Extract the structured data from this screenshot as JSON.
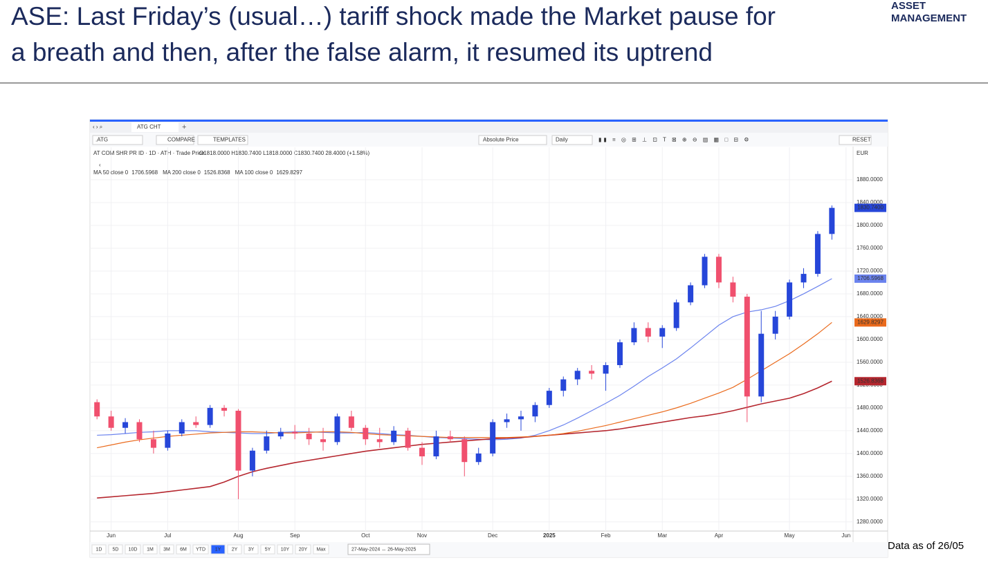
{
  "header": {
    "title_lines": [
      "ASE: Last Friday’s (usual…) tariff shock made the Market pause for",
      "a breath and then, after the false alarm, it resumed its uptrend"
    ],
    "logo": [
      "ASSET",
      "MANAGEMENT"
    ]
  },
  "footer_note": "Data as of 26/05",
  "window": {
    "tab": "ATG CHT",
    "symbol": ".ATG",
    "compare": "COMPARE",
    "templates": "TEMPLATES",
    "price_mode": "Absolute Price",
    "interval": "Daily",
    "reset": "RESET",
    "currency": "EUR",
    "ranges": [
      "1D",
      "5D",
      "10D",
      "1M",
      "3M",
      "6M",
      "YTD",
      "1Y",
      "2Y",
      "3Y",
      "5Y",
      "10Y",
      "20Y",
      "Max"
    ],
    "active_range": "1Y",
    "date_range": "27-May-2024 ↔ 26-May-2025"
  },
  "chart_data": {
    "type": "candlestick",
    "instrument": "AT COM SHR PR ID · 1D · ATH · Trade Price",
    "ohlc_label": "O1818.0000 H1830.7400 L1818.0000 C1830.7400 28.4000 (+1.58%)",
    "categories": [
      null,
      "Jun",
      null,
      null,
      null,
      "Jul",
      null,
      null,
      null,
      null,
      "Aug",
      null,
      null,
      null,
      "Sep",
      null,
      null,
      null,
      null,
      "Oct",
      null,
      null,
      null,
      "Nov",
      null,
      null,
      null,
      null,
      "Dec",
      null,
      null,
      null,
      "2025",
      null,
      null,
      null,
      "Feb",
      null,
      null,
      null,
      "Mar",
      null,
      null,
      null,
      "Apr",
      null,
      null,
      null,
      null,
      "May",
      null,
      null,
      null,
      "Jun"
    ],
    "open": [
      1490,
      1465,
      1445,
      1455,
      1425,
      1410,
      1435,
      1455,
      1450,
      1480,
      1475,
      1370,
      1405,
      1430,
      1438,
      1435,
      1425,
      1420,
      1465,
      1445,
      1425,
      1420,
      1440,
      1410,
      1395,
      1430,
      1425,
      1385,
      1400,
      1455,
      1460,
      1465,
      1485,
      1510,
      1530,
      1545,
      1540,
      1555,
      1595,
      1620,
      1605,
      1620,
      1665,
      1695,
      1745,
      1700,
      1675,
      1500,
      1610,
      1640,
      1700,
      1715,
      1785,
      null
    ],
    "high": [
      1495,
      1475,
      1462,
      1460,
      1440,
      1440,
      1460,
      1465,
      1485,
      1485,
      1478,
      1410,
      1440,
      1445,
      1450,
      1445,
      1445,
      1470,
      1475,
      1450,
      1445,
      1448,
      1445,
      1420,
      1440,
      1440,
      1430,
      1410,
      1460,
      1470,
      1475,
      1490,
      1515,
      1535,
      1550,
      1555,
      1560,
      1600,
      1630,
      1630,
      1625,
      1670,
      1700,
      1750,
      1750,
      1710,
      1680,
      1650,
      1650,
      1705,
      1725,
      1790,
      1835,
      null
    ],
    "low": [
      1460,
      1440,
      1435,
      1420,
      1400,
      1405,
      1430,
      1445,
      1445,
      1465,
      1320,
      1360,
      1400,
      1425,
      1425,
      1415,
      1405,
      1415,
      1440,
      1415,
      1410,
      1415,
      1405,
      1380,
      1390,
      1420,
      1360,
      1380,
      1395,
      1445,
      1440,
      1455,
      1480,
      1500,
      1520,
      1530,
      1510,
      1550,
      1590,
      1595,
      1585,
      1615,
      1660,
      1690,
      1690,
      1665,
      1455,
      1490,
      1600,
      1635,
      1690,
      1710,
      1775,
      null
    ],
    "close": [
      1465,
      1445,
      1455,
      1425,
      1410,
      1435,
      1455,
      1450,
      1480,
      1475,
      1370,
      1405,
      1430,
      1438,
      1435,
      1425,
      1420,
      1465,
      1445,
      1425,
      1420,
      1440,
      1410,
      1395,
      1430,
      1425,
      1385,
      1400,
      1455,
      1460,
      1465,
      1485,
      1510,
      1530,
      1545,
      1540,
      1555,
      1595,
      1620,
      1605,
      1620,
      1665,
      1695,
      1745,
      1700,
      1675,
      1500,
      1610,
      1640,
      1700,
      1715,
      1785,
      1830.74,
      null
    ],
    "up_color": "#2646d9",
    "down_color": "#f0506e",
    "last_label": "1830.7400",
    "series": [
      {
        "name": "MA 50 close 0",
        "color": "#6b83ee",
        "last_label": "1706.5968",
        "values": [
          1432,
          1433,
          1435,
          1437,
          1438,
          1440,
          1440,
          1440,
          1438,
          1437,
          1436,
          1435,
          1435,
          1437,
          1438,
          1438,
          1437,
          1436,
          1436,
          1437,
          1435,
          1433,
          1432,
          1430,
          1428,
          1427,
          1426,
          1425,
          1424,
          1425,
          1427,
          1432,
          1440,
          1450,
          1462,
          1475,
          1488,
          1502,
          1518,
          1535,
          1550,
          1566,
          1585,
          1605,
          1625,
          1640,
          1648,
          1652,
          1658,
          1668,
          1680,
          1693,
          1706.6,
          null
        ]
      },
      {
        "name": "MA 200 close 0",
        "color": "#b5262e",
        "last_label": "1526.8368",
        "values": [
          1322,
          1324,
          1326,
          1328,
          1330,
          1333,
          1336,
          1339,
          1342,
          1350,
          1360,
          1368,
          1374,
          1379,
          1384,
          1388,
          1392,
          1396,
          1400,
          1404,
          1407,
          1410,
          1413,
          1416,
          1418,
          1420,
          1422,
          1424,
          1426,
          1427,
          1428,
          1430,
          1432,
          1434,
          1436,
          1438,
          1440,
          1443,
          1447,
          1451,
          1455,
          1459,
          1463,
          1466,
          1470,
          1475,
          1481,
          1487,
          1492,
          1497,
          1505,
          1515,
          1526.8,
          null
        ]
      },
      {
        "name": "MA 100 close 0",
        "color": "#ea6a1c",
        "last_label": "1629.8297",
        "values": [
          1410,
          1415,
          1420,
          1424,
          1427,
          1430,
          1432,
          1434,
          1436,
          1437,
          1438,
          1438,
          1437,
          1436,
          1436,
          1437,
          1438,
          1438,
          1437,
          1435,
          1433,
          1432,
          1431,
          1430,
          1429,
          1428,
          1428,
          1428,
          1428,
          1428,
          1429,
          1430,
          1432,
          1435,
          1439,
          1444,
          1449,
          1455,
          1461,
          1467,
          1473,
          1480,
          1488,
          1497,
          1506,
          1516,
          1530,
          1545,
          1560,
          1575,
          1592,
          1610,
          1629.8,
          null
        ]
      }
    ],
    "ylim": [
      1264,
      1937
    ],
    "yticks": [
      {
        "value": 1280,
        "label": "1280.0000"
      },
      {
        "value": 1320,
        "label": "1320.0000"
      },
      {
        "value": 1360,
        "label": "1360.0000"
      },
      {
        "value": 1400,
        "label": "1400.0000"
      },
      {
        "value": 1440,
        "label": "1440.0000"
      },
      {
        "value": 1480,
        "label": "1480.0000"
      },
      {
        "value": 1520,
        "label": "1520.0000"
      },
      {
        "value": 1560,
        "label": "1560.0000"
      },
      {
        "value": 1600,
        "label": "1600.0000"
      },
      {
        "value": 1640,
        "label": "1640.0000"
      },
      {
        "value": 1680,
        "label": "1680.0000"
      },
      {
        "value": 1720,
        "label": "1720.0000"
      },
      {
        "value": 1760,
        "label": "1760.0000"
      },
      {
        "value": 1800,
        "label": "1800.0000"
      },
      {
        "value": 1840,
        "label": "1840.0000"
      },
      {
        "value": 1880,
        "label": "1880.0000"
      }
    ],
    "grid": true
  }
}
